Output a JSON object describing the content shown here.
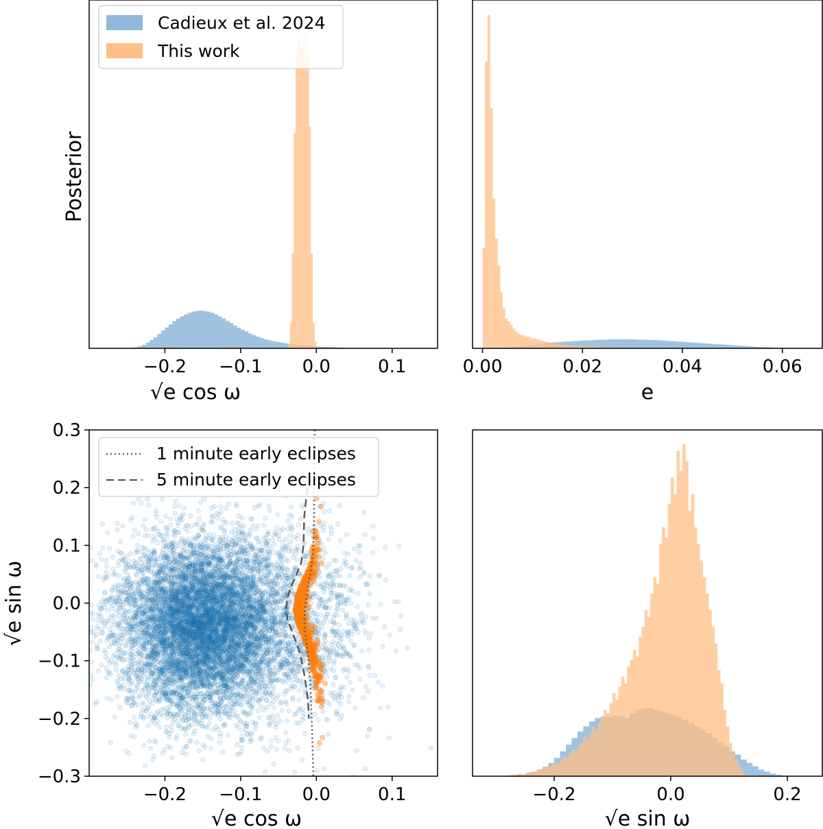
{
  "colors": {
    "cadieux": "#1f77b4",
    "this_work": "#ff7f0e",
    "hist_blue": "#8fb8da",
    "hist_orange": "#ffbf86",
    "reference_line": "#555555"
  },
  "chart_data": [
    {
      "id": "top-left",
      "type": "histogram",
      "xlabel": "√e cos ω",
      "ylabel": "Posterior",
      "xlim": [
        -0.3,
        0.16
      ],
      "xticks": [
        "−0.2",
        "−0.1",
        "0.0",
        "0.1"
      ],
      "xtick_values": [
        -0.2,
        -0.1,
        0.0,
        0.1
      ],
      "legend_position": "top-left",
      "series": [
        {
          "name": "Cadieux et al. 2024",
          "color": "blue",
          "alpha": 0.4,
          "bin_width": 0.005,
          "bin_starts": [
            -0.25,
            -0.245,
            -0.24,
            -0.235,
            -0.23,
            -0.225,
            -0.22,
            -0.215,
            -0.21,
            -0.205,
            -0.2,
            -0.195,
            -0.19,
            -0.185,
            -0.18,
            -0.175,
            -0.17,
            -0.165,
            -0.16,
            -0.155,
            -0.15,
            -0.145,
            -0.14,
            -0.135,
            -0.13,
            -0.125,
            -0.12,
            -0.115,
            -0.11,
            -0.105,
            -0.1,
            -0.095,
            -0.09,
            -0.085,
            -0.08,
            -0.075,
            -0.07,
            -0.065,
            -0.06,
            -0.055,
            -0.05,
            -0.045,
            -0.04,
            -0.035,
            -0.03,
            -0.025,
            -0.02,
            -0.015,
            -0.01,
            -0.005,
            0.0,
            0.005,
            0.01,
            0.015,
            0.02,
            0.025,
            0.03,
            0.035,
            0.04,
            0.045,
            0.05,
            0.055,
            0.06,
            0.065,
            0.07,
            0.075
          ],
          "values": [
            0.001,
            0.002,
            0.004,
            0.007,
            0.011,
            0.018,
            0.026,
            0.035,
            0.045,
            0.056,
            0.066,
            0.076,
            0.086,
            0.094,
            0.101,
            0.107,
            0.112,
            0.116,
            0.118,
            0.119,
            0.118,
            0.116,
            0.112,
            0.107,
            0.101,
            0.094,
            0.087,
            0.08,
            0.072,
            0.065,
            0.059,
            0.053,
            0.047,
            0.042,
            0.037,
            0.033,
            0.029,
            0.026,
            0.023,
            0.021,
            0.019,
            0.017,
            0.015,
            0.013,
            0.012,
            0.011,
            0.01,
            0.009,
            0.008,
            0.007,
            0.006,
            0.005,
            0.0045,
            0.004,
            0.0035,
            0.003,
            0.0025,
            0.002,
            0.0018,
            0.0015,
            0.0012,
            0.001,
            0.0008,
            0.0006,
            0.0004,
            0.0002
          ]
        },
        {
          "name": "This work",
          "color": "orange",
          "alpha": 0.45,
          "bin_width": 0.0025,
          "bin_starts": [
            -0.04,
            -0.0375,
            -0.035,
            -0.0325,
            -0.03,
            -0.0275,
            -0.025,
            -0.0225,
            -0.02,
            -0.0175,
            -0.015,
            -0.0125,
            -0.01,
            -0.0075,
            -0.005,
            -0.0025
          ],
          "values": [
            0.002,
            0.015,
            0.08,
            0.3,
            0.68,
            0.93,
            0.98,
            0.97,
            0.95,
            1.0,
            0.92,
            0.98,
            0.7,
            0.3,
            0.08,
            0.02
          ]
        }
      ]
    },
    {
      "id": "top-right",
      "type": "histogram",
      "xlabel": "e",
      "ylabel": "",
      "xlim": [
        -0.002,
        0.068
      ],
      "xticks": [
        "0.00",
        "0.02",
        "0.04",
        "0.06"
      ],
      "xtick_values": [
        0.0,
        0.02,
        0.04,
        0.06
      ],
      "series": [
        {
          "name": "Cadieux et al. 2024",
          "color": "blue",
          "alpha": 0.4,
          "bin_width": 0.001,
          "bin_starts": [
            0.0,
            0.001,
            0.002,
            0.003,
            0.004,
            0.005,
            0.006,
            0.007,
            0.008,
            0.009,
            0.01,
            0.011,
            0.012,
            0.013,
            0.014,
            0.015,
            0.016,
            0.017,
            0.018,
            0.019,
            0.02,
            0.021,
            0.022,
            0.023,
            0.024,
            0.025,
            0.026,
            0.027,
            0.028,
            0.029,
            0.03,
            0.031,
            0.032,
            0.033,
            0.034,
            0.035,
            0.036,
            0.037,
            0.038,
            0.039,
            0.04,
            0.041,
            0.042,
            0.043,
            0.044,
            0.045,
            0.046,
            0.047,
            0.048,
            0.049,
            0.05,
            0.051,
            0.052,
            0.053,
            0.054,
            0.055,
            0.056,
            0.057,
            0.058,
            0.059,
            0.06,
            0.061
          ],
          "values": [
            0.0,
            0.0,
            0.001,
            0.001,
            0.002,
            0.003,
            0.004,
            0.006,
            0.008,
            0.01,
            0.012,
            0.014,
            0.016,
            0.017,
            0.018,
            0.019,
            0.02,
            0.021,
            0.022,
            0.023,
            0.024,
            0.024,
            0.025,
            0.026,
            0.026,
            0.027,
            0.027,
            0.027,
            0.027,
            0.027,
            0.027,
            0.026,
            0.026,
            0.025,
            0.025,
            0.024,
            0.023,
            0.022,
            0.021,
            0.02,
            0.019,
            0.018,
            0.017,
            0.016,
            0.015,
            0.014,
            0.013,
            0.012,
            0.011,
            0.01,
            0.009,
            0.008,
            0.007,
            0.006,
            0.005,
            0.004,
            0.004,
            0.003,
            0.002,
            0.002,
            0.001,
            0.001
          ]
        },
        {
          "name": "This work",
          "color": "orange",
          "alpha": 0.45,
          "bin_width": 0.0005,
          "bin_starts": [
            0.0,
            0.0005,
            0.001,
            0.0015,
            0.002,
            0.0025,
            0.003,
            0.0035,
            0.004,
            0.0045,
            0.005,
            0.0055,
            0.006,
            0.0065,
            0.007,
            0.0075,
            0.008,
            0.0085,
            0.009,
            0.0095,
            0.01,
            0.0105,
            0.011,
            0.0115,
            0.012,
            0.0125,
            0.013,
            0.0135,
            0.014,
            0.0145,
            0.015,
            0.0155,
            0.016,
            0.0165,
            0.017,
            0.0175,
            0.018,
            0.0185,
            0.019,
            0.0195,
            0.02,
            0.0205,
            0.021,
            0.0215,
            0.022,
            0.0225,
            0.023,
            0.0235,
            0.024,
            0.0245,
            0.025,
            0.0255,
            0.026,
            0.0265,
            0.027,
            0.0275,
            0.028,
            0.0285,
            0.029,
            0.0295,
            0.03,
            0.0305,
            0.031,
            0.0315,
            0.032,
            0.0325,
            0.033,
            0.0335,
            0.034,
            0.0345,
            0.035,
            0.0355,
            0.036,
            0.0365,
            0.037,
            0.0375,
            0.038,
            0.0385,
            0.039,
            0.0395
          ],
          "values": [
            0.3,
            0.86,
            1.0,
            0.72,
            0.45,
            0.33,
            0.25,
            0.17,
            0.12,
            0.09,
            0.08,
            0.07,
            0.06,
            0.05,
            0.045,
            0.04,
            0.04,
            0.035,
            0.035,
            0.03,
            0.03,
            0.028,
            0.026,
            0.024,
            0.022,
            0.02,
            0.018,
            0.016,
            0.015,
            0.014,
            0.013,
            0.012,
            0.011,
            0.01,
            0.009,
            0.008,
            0.008,
            0.007,
            0.007,
            0.006,
            0.006,
            0.005,
            0.005,
            0.005,
            0.004,
            0.004,
            0.004,
            0.003,
            0.003,
            0.003,
            0.003,
            0.002,
            0.002,
            0.002,
            0.002,
            0.002,
            0.002,
            0.0015,
            0.0015,
            0.0015,
            0.0015,
            0.001,
            0.001,
            0.001,
            0.001,
            0.001,
            0.001,
            0.001,
            0.001,
            0.001,
            0.0008,
            0.0008,
            0.0008,
            0.0008,
            0.0006,
            0.0006,
            0.0006,
            0.0005,
            0.0005,
            0.0005
          ]
        }
      ]
    },
    {
      "id": "bottom-left",
      "type": "scatter",
      "xlabel": "√e cos ω",
      "ylabel": "√e sin ω",
      "xlim": [
        -0.3,
        0.16
      ],
      "ylim": [
        -0.3,
        0.3
      ],
      "xticks": [
        "−0.2",
        "−0.1",
        "0.0",
        "0.1"
      ],
      "xtick_values": [
        -0.2,
        -0.1,
        0.0,
        0.1
      ],
      "yticks": [
        "−0.3",
        "−0.2",
        "−0.1",
        "0.0",
        "0.1",
        "0.2",
        "0.3"
      ],
      "ytick_values": [
        -0.3,
        -0.2,
        -0.1,
        0.0,
        0.1,
        0.2,
        0.3
      ],
      "legend_position": "top-left",
      "scatter_series": [
        {
          "name": "Cadieux et al. 2024",
          "color": "blue",
          "count": 9000,
          "center": [
            -0.15,
            -0.04
          ],
          "spread": [
            0.055,
            0.075
          ]
        },
        {
          "name": "This work",
          "color": "orange",
          "count": 700,
          "center": [
            -0.018,
            -0.02
          ],
          "spread": [
            0.006,
            0.06
          ]
        }
      ],
      "reference_lines": [
        {
          "name": "1 minute early eclipses",
          "style": "dotted",
          "x": [
            -0.002,
            -0.003,
            -0.003,
            -0.003,
            -0.004,
            -0.006,
            -0.008,
            -0.011,
            -0.013,
            -0.015,
            -0.016,
            -0.015,
            -0.013,
            -0.011,
            -0.01,
            -0.008,
            -0.007,
            -0.006,
            -0.005,
            -0.004
          ],
          "y": [
            0.3,
            0.25,
            0.2,
            0.15,
            0.1,
            0.07,
            0.05,
            0.03,
            0.01,
            -0.01,
            -0.03,
            -0.05,
            -0.07,
            -0.09,
            -0.11,
            -0.14,
            -0.17,
            -0.21,
            -0.25,
            -0.3
          ]
        },
        {
          "name": "5 minute early eclipses",
          "style": "dashed",
          "x": [
            -0.012,
            -0.016,
            -0.017,
            -0.02,
            -0.026,
            -0.033,
            -0.038,
            -0.04,
            -0.038,
            -0.032,
            -0.026,
            -0.021,
            -0.018,
            -0.015,
            -0.013,
            -0.011,
            -0.01
          ],
          "y": [
            0.2,
            0.15,
            0.1,
            0.07,
            0.05,
            0.03,
            0.01,
            -0.01,
            -0.03,
            -0.05,
            -0.07,
            -0.09,
            -0.11,
            -0.13,
            -0.15,
            -0.17,
            -0.2
          ]
        }
      ]
    },
    {
      "id": "bottom-right",
      "type": "histogram",
      "xlabel": "√e sin ω",
      "ylabel": "",
      "xlim": [
        -0.34,
        0.26
      ],
      "xticks": [
        "−0.2",
        "0.0",
        "0.2"
      ],
      "xtick_values": [
        -0.2,
        0.0,
        0.2
      ],
      "series": [
        {
          "name": "Cadieux et al. 2024",
          "color": "blue",
          "alpha": 0.4,
          "bin_width": 0.01,
          "bin_starts": [
            -0.28,
            -0.27,
            -0.26,
            -0.25,
            -0.24,
            -0.23,
            -0.22,
            -0.21,
            -0.2,
            -0.19,
            -0.18,
            -0.17,
            -0.16,
            -0.15,
            -0.14,
            -0.13,
            -0.12,
            -0.11,
            -0.1,
            -0.09,
            -0.08,
            -0.07,
            -0.06,
            -0.05,
            -0.04,
            -0.03,
            -0.02,
            -0.01,
            0.0,
            0.01,
            0.02,
            0.03,
            0.04,
            0.05,
            0.06,
            0.07,
            0.08,
            0.09,
            0.1,
            0.11,
            0.12,
            0.13,
            0.14,
            0.15,
            0.16,
            0.17,
            0.18,
            0.19
          ],
          "values": [
            0.002,
            0.003,
            0.005,
            0.008,
            0.013,
            0.02,
            0.028,
            0.04,
            0.055,
            0.075,
            0.095,
            0.115,
            0.135,
            0.15,
            0.165,
            0.175,
            0.18,
            0.18,
            0.182,
            0.18,
            0.175,
            0.19,
            0.2,
            0.205,
            0.205,
            0.2,
            0.195,
            0.19,
            0.185,
            0.178,
            0.17,
            0.16,
            0.15,
            0.14,
            0.13,
            0.115,
            0.1,
            0.09,
            0.075,
            0.065,
            0.05,
            0.04,
            0.03,
            0.02,
            0.014,
            0.008,
            0.004,
            0.002
          ]
        },
        {
          "name": "This work",
          "color": "orange",
          "alpha": 0.45,
          "bin_width": 0.005,
          "bin_starts": [
            -0.28,
            -0.275,
            -0.27,
            -0.265,
            -0.26,
            -0.255,
            -0.25,
            -0.245,
            -0.24,
            -0.235,
            -0.23,
            -0.225,
            -0.22,
            -0.215,
            -0.21,
            -0.205,
            -0.2,
            -0.195,
            -0.19,
            -0.185,
            -0.18,
            -0.175,
            -0.17,
            -0.165,
            -0.16,
            -0.155,
            -0.15,
            -0.145,
            -0.14,
            -0.135,
            -0.13,
            -0.125,
            -0.12,
            -0.115,
            -0.11,
            -0.105,
            -0.1,
            -0.095,
            -0.09,
            -0.085,
            -0.08,
            -0.075,
            -0.07,
            -0.065,
            -0.06,
            -0.055,
            -0.05,
            -0.045,
            -0.04,
            -0.035,
            -0.03,
            -0.025,
            -0.02,
            -0.015,
            -0.01,
            -0.005,
            0.0,
            0.005,
            0.01,
            0.015,
            0.02,
            0.025,
            0.03,
            0.035,
            0.04,
            0.045,
            0.05,
            0.055,
            0.06,
            0.065,
            0.07,
            0.075,
            0.08,
            0.085,
            0.09,
            0.095,
            0.1,
            0.105,
            0.11,
            0.115,
            0.12,
            0.125
          ],
          "values": [
            0.002,
            0.004,
            0.003,
            0.006,
            0.008,
            0.005,
            0.01,
            0.012,
            0.009,
            0.015,
            0.02,
            0.018,
            0.025,
            0.03,
            0.028,
            0.035,
            0.04,
            0.038,
            0.05,
            0.06,
            0.055,
            0.07,
            0.08,
            0.075,
            0.09,
            0.1,
            0.12,
            0.11,
            0.13,
            0.15,
            0.14,
            0.16,
            0.18,
            0.2,
            0.19,
            0.22,
            0.25,
            0.23,
            0.27,
            0.3,
            0.28,
            0.33,
            0.35,
            0.38,
            0.36,
            0.42,
            0.45,
            0.5,
            0.48,
            0.55,
            0.6,
            0.58,
            0.7,
            0.75,
            0.72,
            0.82,
            0.9,
            0.85,
            0.98,
            0.92,
            1.0,
            0.95,
            0.8,
            0.85,
            0.75,
            0.7,
            0.65,
            0.6,
            0.55,
            0.5,
            0.45,
            0.4,
            0.32,
            0.28,
            0.2,
            0.15,
            0.1,
            0.07,
            0.05,
            0.03,
            0.015,
            0.005
          ]
        }
      ]
    }
  ],
  "legends": {
    "top_left": [
      {
        "label": "Cadieux et al. 2024",
        "color": "blue"
      },
      {
        "label": "This work",
        "color": "orange"
      }
    ],
    "bottom_left": [
      {
        "label": "1 minute early eclipses",
        "style": "dotted"
      },
      {
        "label": "5 minute early eclipses",
        "style": "dashed"
      }
    ]
  }
}
